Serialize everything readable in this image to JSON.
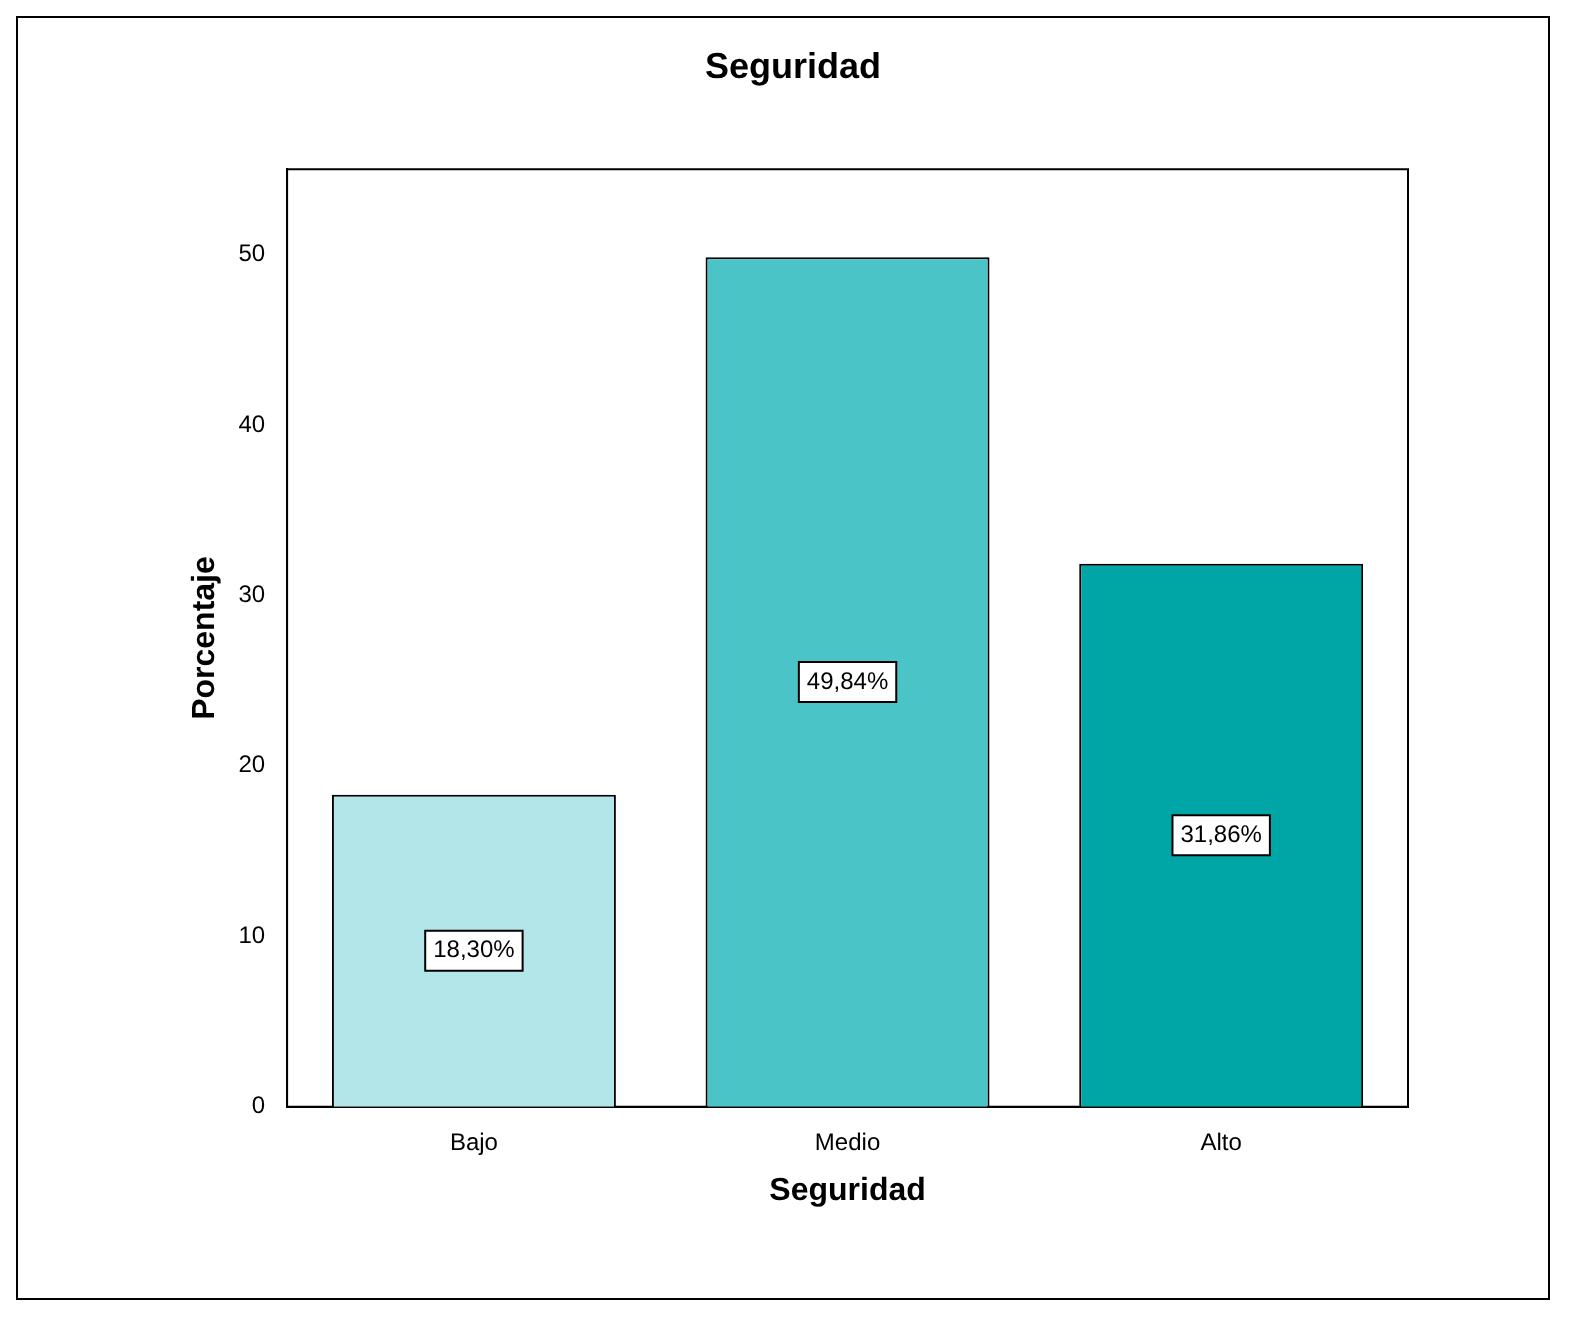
{
  "chart_data": {
    "type": "bar",
    "title": "Seguridad",
    "xlabel": "Seguridad",
    "ylabel": "Porcentaje",
    "categories": [
      "Bajo",
      "Medio",
      "Alto"
    ],
    "values": [
      18.3,
      49.84,
      31.86
    ],
    "colors": [
      "#b3e6e8",
      "#4bc4c8",
      "#00a6a6"
    ],
    "value_labels": [
      "18,30%",
      "49,84%",
      "31,86%"
    ],
    "ylim": [
      0,
      55
    ],
    "yticks": [
      0,
      10,
      20,
      30,
      40,
      50
    ],
    "grid": false,
    "legend": false
  }
}
